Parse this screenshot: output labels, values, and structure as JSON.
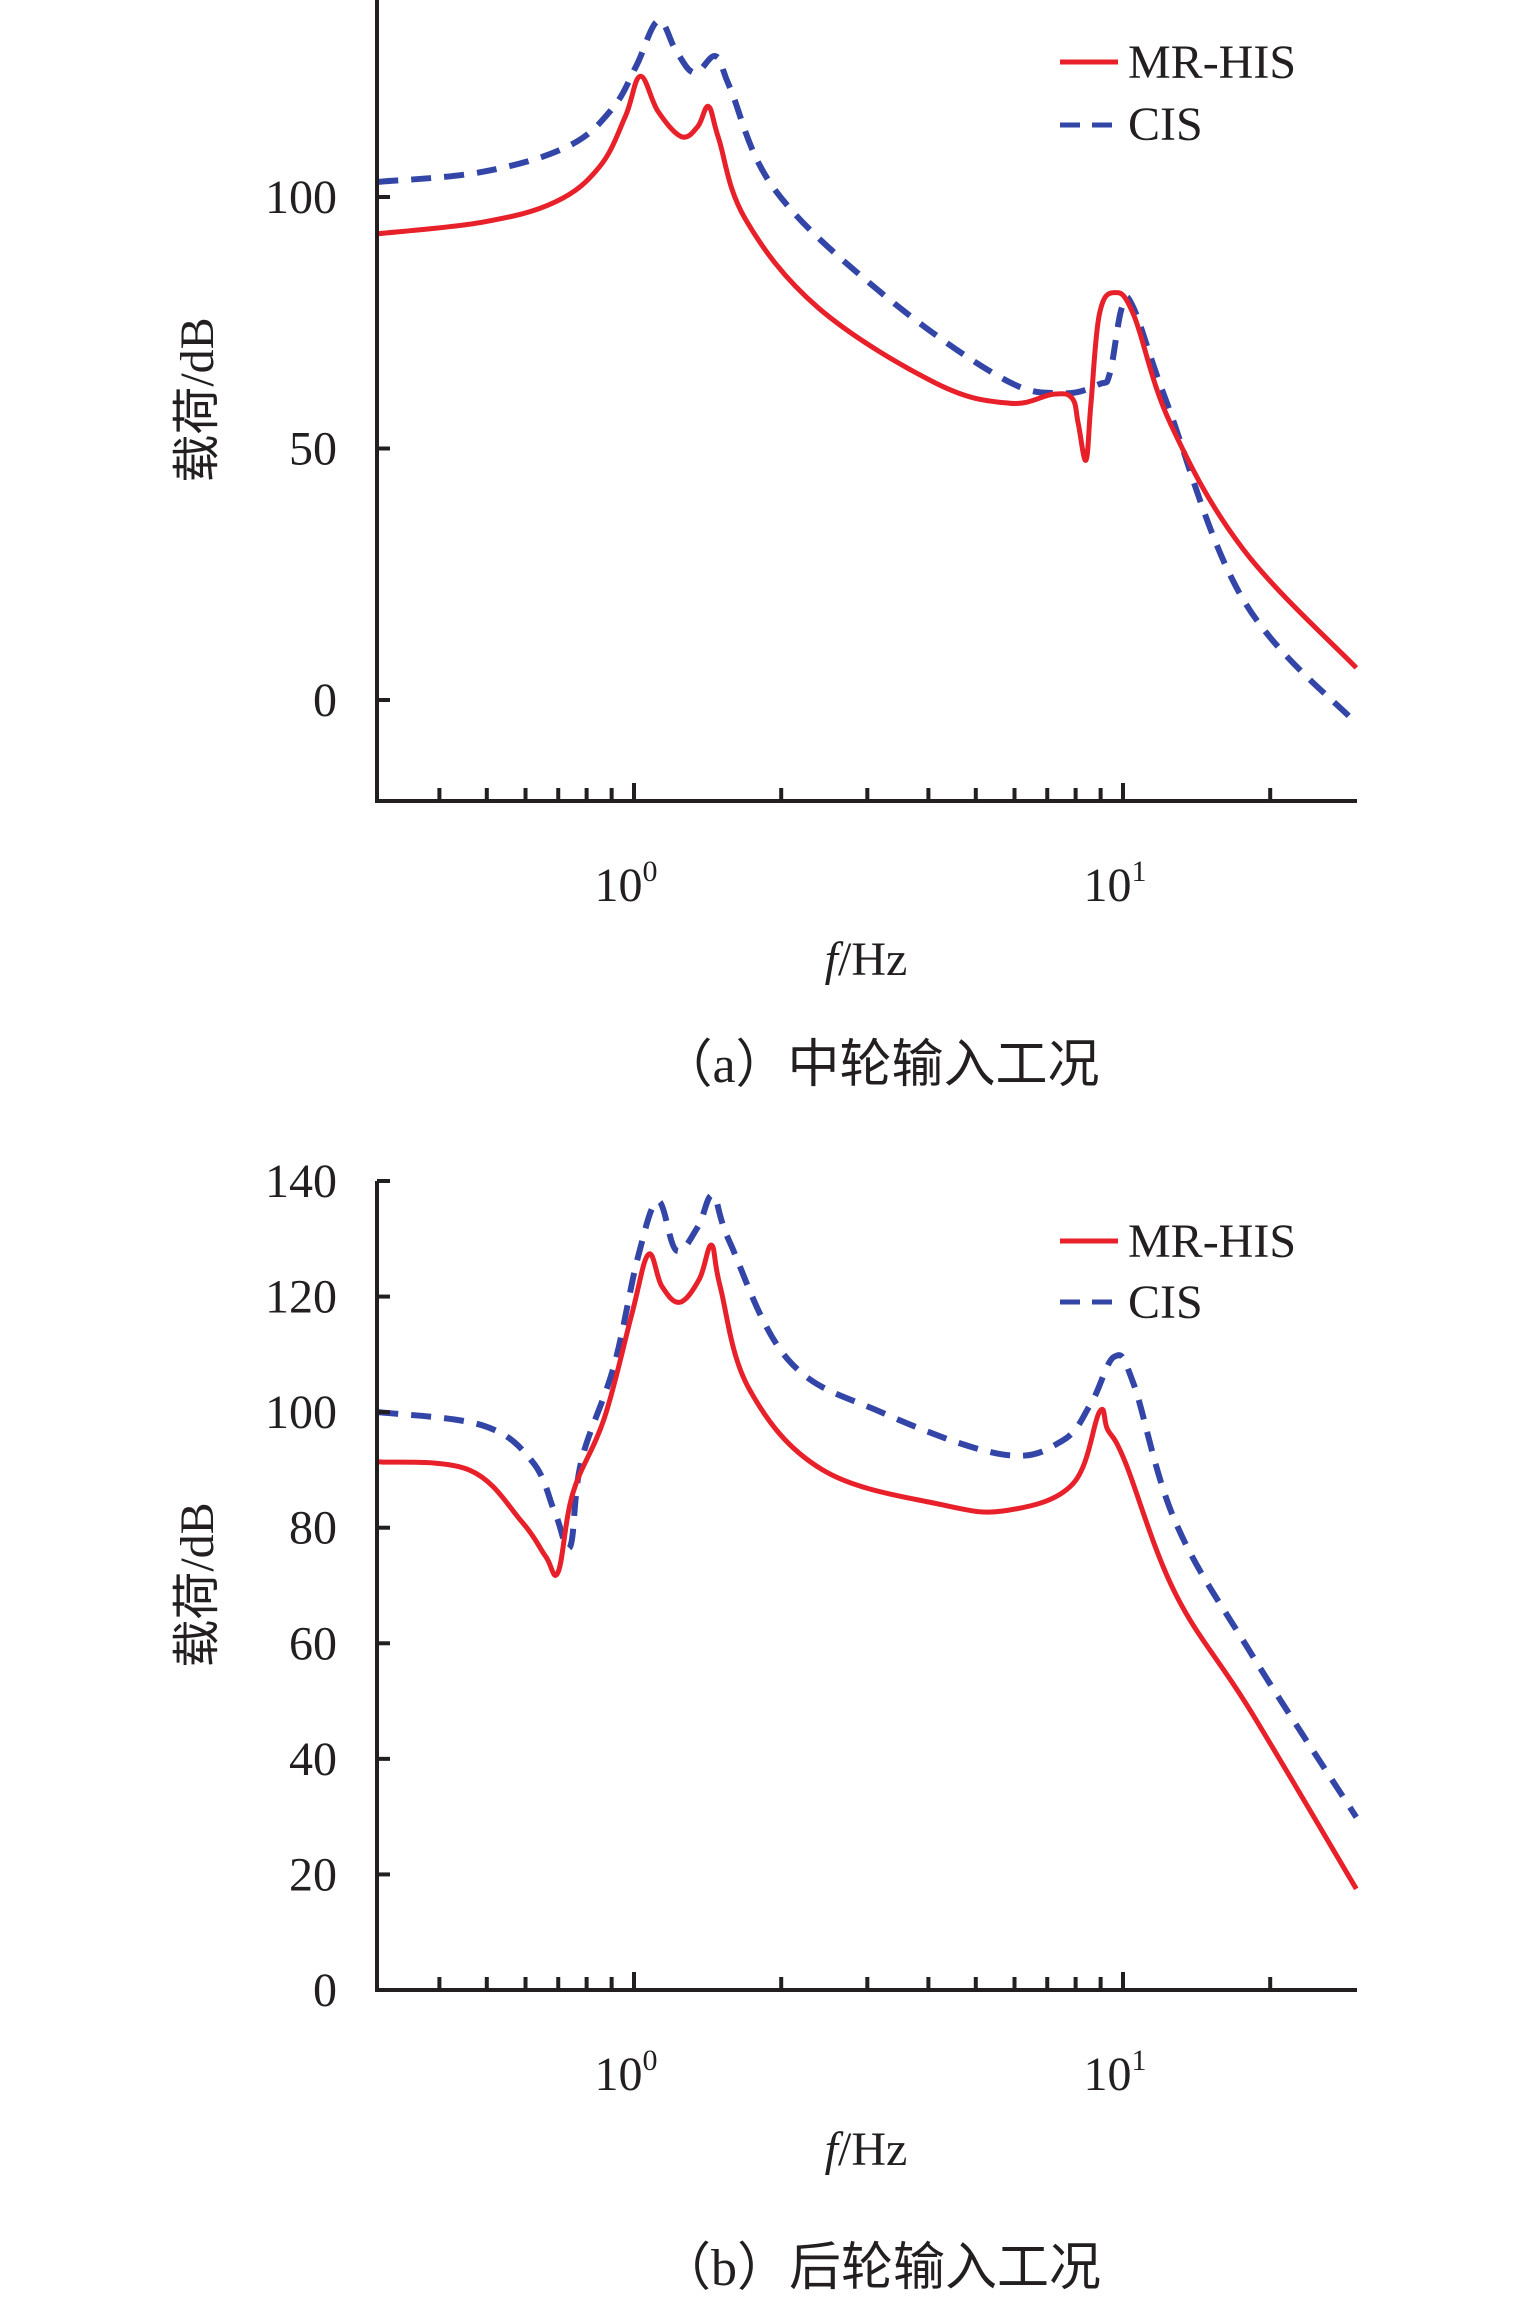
{
  "colors": {
    "mr_his": "#e8202a",
    "cis": "#3346a8",
    "axis": "#231f20"
  },
  "chart_data": [
    {
      "id": "a",
      "type": "line",
      "caption": "（a）中轮输入工况",
      "xlabel_italic": "f",
      "xlabel_rest": "/Hz",
      "ylabel": "载荷/dB",
      "xscale": "log",
      "xlim": [
        0.3,
        30
      ],
      "ylim": [
        -20,
        139
      ],
      "xticks": [
        {
          "base": "10",
          "exp": "0",
          "value": 1
        },
        {
          "base": "10",
          "exp": "1",
          "value": 10
        }
      ],
      "yticks": [
        {
          "label": "0",
          "value": 0
        },
        {
          "label": "50",
          "value": 50
        },
        {
          "label": "100",
          "value": 100
        }
      ],
      "legend_position": "top-right",
      "grid": false,
      "series": [
        {
          "name": "MR-HIS",
          "style": "solid",
          "points": [
            [
              0.3,
              92.7
            ],
            [
              0.49,
              95
            ],
            [
              0.69,
              99
            ],
            [
              0.85,
              106
            ],
            [
              0.96,
              116
            ],
            [
              1.03,
              124
            ],
            [
              1.12,
              117
            ],
            [
              1.25,
              112
            ],
            [
              1.35,
              114
            ],
            [
              1.42,
              118
            ],
            [
              1.49,
              111.6
            ],
            [
              1.69,
              95.6
            ],
            [
              2.38,
              78
            ],
            [
              4.14,
              63
            ],
            [
              5.86,
              59
            ],
            [
              7.2,
              60.8
            ],
            [
              7.87,
              60
            ],
            [
              8.1,
              55
            ],
            [
              8.4,
              47.7
            ],
            [
              8.6,
              59
            ],
            [
              8.95,
              76.7
            ],
            [
              9.6,
              81
            ],
            [
              10.5,
              76.7
            ],
            [
              12.5,
              55
            ],
            [
              17.6,
              30
            ],
            [
              30,
              6.4
            ]
          ]
        },
        {
          "name": "CIS",
          "style": "dashed",
          "points": [
            [
              0.3,
              103
            ],
            [
              0.49,
              105
            ],
            [
              0.73,
              110
            ],
            [
              0.9,
              117.4
            ],
            [
              1.01,
              126
            ],
            [
              1.12,
              135
            ],
            [
              1.22,
              129
            ],
            [
              1.33,
              124.7
            ],
            [
              1.47,
              128
            ],
            [
              1.57,
              121.8
            ],
            [
              1.94,
              101.5
            ],
            [
              3.2,
              81
            ],
            [
              5.65,
              64
            ],
            [
              7.5,
              61
            ],
            [
              8.95,
              62.8
            ],
            [
              9.4,
              65
            ],
            [
              9.95,
              78
            ],
            [
              10.5,
              78
            ],
            [
              12.3,
              59
            ],
            [
              17.6,
              20
            ],
            [
              30,
              -4.7
            ]
          ]
        }
      ]
    },
    {
      "id": "b",
      "type": "line",
      "caption": "（b）后轮输入工况",
      "xlabel_italic": "f",
      "xlabel_rest": "/Hz",
      "ylabel": "载荷/dB",
      "xscale": "log",
      "xlim": [
        0.3,
        30
      ],
      "ylim": [
        0,
        140
      ],
      "xticks": [
        {
          "base": "10",
          "exp": "0",
          "value": 1
        },
        {
          "base": "10",
          "exp": "1",
          "value": 10
        }
      ],
      "yticks": [
        {
          "label": "0",
          "value": 0
        },
        {
          "label": "20",
          "value": 20
        },
        {
          "label": "40",
          "value": 40
        },
        {
          "label": "60",
          "value": 60
        },
        {
          "label": "80",
          "value": 80
        },
        {
          "label": "100",
          "value": 100
        },
        {
          "label": "120",
          "value": 120
        },
        {
          "label": "140",
          "value": 140
        }
      ],
      "legend_position": "top-right",
      "grid": false,
      "series": [
        {
          "name": "MR-HIS",
          "style": "solid",
          "points": [
            [
              0.3,
              91.4
            ],
            [
              0.46,
              90
            ],
            [
              0.59,
              81
            ],
            [
              0.66,
              75
            ],
            [
              0.7,
              72.4
            ],
            [
              0.75,
              86
            ],
            [
              0.87,
              99
            ],
            [
              0.99,
              117
            ],
            [
              1.07,
              127.3
            ],
            [
              1.14,
              121.8
            ],
            [
              1.24,
              119
            ],
            [
              1.36,
              123
            ],
            [
              1.44,
              128.9
            ],
            [
              1.5,
              121.8
            ],
            [
              1.72,
              104
            ],
            [
              2.43,
              90
            ],
            [
              4.25,
              84
            ],
            [
              5.8,
              83
            ],
            [
              7.9,
              87.6
            ],
            [
              8.95,
              100
            ],
            [
              9.3,
              97
            ],
            [
              10.1,
              91.4
            ],
            [
              12.8,
              68.6
            ],
            [
              18.2,
              48.4
            ],
            [
              30,
              17.5
            ]
          ]
        },
        {
          "name": "CIS",
          "style": "dashed",
          "points": [
            [
              0.3,
              100
            ],
            [
              0.49,
              97.7
            ],
            [
              0.62,
              91.4
            ],
            [
              0.69,
              82.5
            ],
            [
              0.74,
              76.7
            ],
            [
              0.78,
              91.4
            ],
            [
              0.91,
              108
            ],
            [
              1.02,
              127
            ],
            [
              1.12,
              136.5
            ],
            [
              1.22,
              128
            ],
            [
              1.35,
              132
            ],
            [
              1.45,
              137.5
            ],
            [
              1.57,
              129.4
            ],
            [
              2.07,
              109
            ],
            [
              3.2,
              100
            ],
            [
              5.65,
              92.7
            ],
            [
              7.5,
              95
            ],
            [
              8.6,
              101.5
            ],
            [
              9.6,
              109.6
            ],
            [
              10.5,
              105
            ],
            [
              12.8,
              81
            ],
            [
              18.2,
              58.5
            ],
            [
              30,
              29.9
            ]
          ]
        }
      ]
    }
  ]
}
